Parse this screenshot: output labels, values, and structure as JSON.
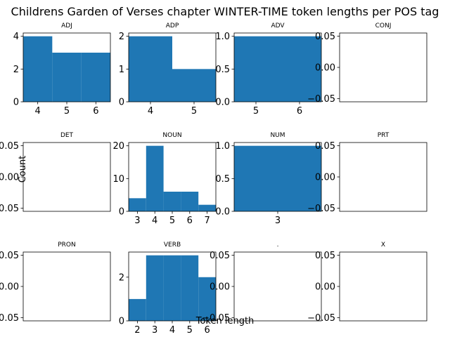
{
  "chart_data": {
    "title": "Childrens Garden of Verses chapter WINTER-TIME token lengths per POS tag",
    "xlabel": "Token length",
    "ylabel": "Count",
    "bar_color": "#1f77b4",
    "grid": false,
    "panels": [
      {
        "type": "bar",
        "title": "ADJ",
        "x": [
          4,
          5,
          6
        ],
        "values": [
          4,
          3,
          3
        ],
        "xticks": [
          "4",
          "5",
          "6"
        ],
        "xlim": [
          3.5,
          6.5
        ],
        "ylim": [
          0,
          4.2
        ],
        "yticks": [
          "0",
          "2",
          "4"
        ]
      },
      {
        "type": "bar",
        "title": "ADP",
        "x": [
          4,
          5
        ],
        "values": [
          2,
          1
        ],
        "xticks": [
          "4",
          "5"
        ],
        "xlim": [
          3.5,
          5.5
        ],
        "ylim": [
          0,
          2.1
        ],
        "yticks": [
          "0",
          "1",
          "2"
        ]
      },
      {
        "type": "bar",
        "title": "ADV",
        "x": [
          5,
          6
        ],
        "values": [
          1,
          1
        ],
        "xticks": [
          "5",
          "6"
        ],
        "xlim": [
          4.5,
          6.5
        ],
        "ylim": [
          0,
          1.05
        ],
        "yticks": [
          "0.0",
          "0.5",
          "1.0"
        ]
      },
      {
        "type": "bar",
        "title": "CONJ",
        "x": [],
        "values": [],
        "xticks": [],
        "ylim": [
          -0.055,
          0.055
        ],
        "yticks": [
          "−0.05",
          "0.00",
          "0.05"
        ]
      },
      {
        "type": "bar",
        "title": "DET",
        "x": [],
        "values": [],
        "xticks": [],
        "ylim": [
          -0.055,
          0.055
        ],
        "yticks": [
          "−0.05",
          "0.00",
          "0.05"
        ]
      },
      {
        "type": "bar",
        "title": "NOUN",
        "x": [
          3,
          4,
          5,
          6,
          7
        ],
        "values": [
          4,
          20,
          6,
          6,
          2
        ],
        "xticks": [
          "3",
          "4",
          "5",
          "6",
          "7"
        ],
        "xlim": [
          2.5,
          7.5
        ],
        "ylim": [
          0,
          21
        ],
        "yticks": [
          "0",
          "10",
          "20"
        ]
      },
      {
        "type": "bar",
        "title": "NUM",
        "x": [
          3
        ],
        "values": [
          1
        ],
        "xticks": [
          "3"
        ],
        "xlim": [
          2.5,
          3.5
        ],
        "ylim": [
          0,
          1.05
        ],
        "yticks": [
          "0.0",
          "0.5",
          "1.0"
        ]
      },
      {
        "type": "bar",
        "title": "PRT",
        "x": [],
        "values": [],
        "xticks": [],
        "ylim": [
          -0.055,
          0.055
        ],
        "yticks": [
          "−0.05",
          "0.00",
          "0.05"
        ]
      },
      {
        "type": "bar",
        "title": "PRON",
        "x": [],
        "values": [],
        "xticks": [],
        "ylim": [
          -0.055,
          0.055
        ],
        "yticks": [
          "−0.05",
          "0.00",
          "0.05"
        ]
      },
      {
        "type": "bar",
        "title": "VERB",
        "x": [
          2,
          3,
          4,
          5,
          6
        ],
        "values": [
          1,
          3,
          3,
          3,
          2
        ],
        "xticks": [
          "2",
          "3",
          "4",
          "5",
          "6"
        ],
        "xlim": [
          1.5,
          6.5
        ],
        "ylim": [
          0,
          3.15
        ],
        "yticks": [
          "0",
          "2"
        ]
      },
      {
        "type": "bar",
        "title": ".",
        "x": [],
        "values": [],
        "xticks": [],
        "ylim": [
          -0.055,
          0.055
        ],
        "yticks": [
          "−0.05",
          "0.00",
          "0.05"
        ]
      },
      {
        "type": "bar",
        "title": "X",
        "x": [],
        "values": [],
        "xticks": [],
        "ylim": [
          -0.055,
          0.055
        ],
        "yticks": [
          "−0.05",
          "0.00",
          "0.05"
        ]
      }
    ]
  }
}
